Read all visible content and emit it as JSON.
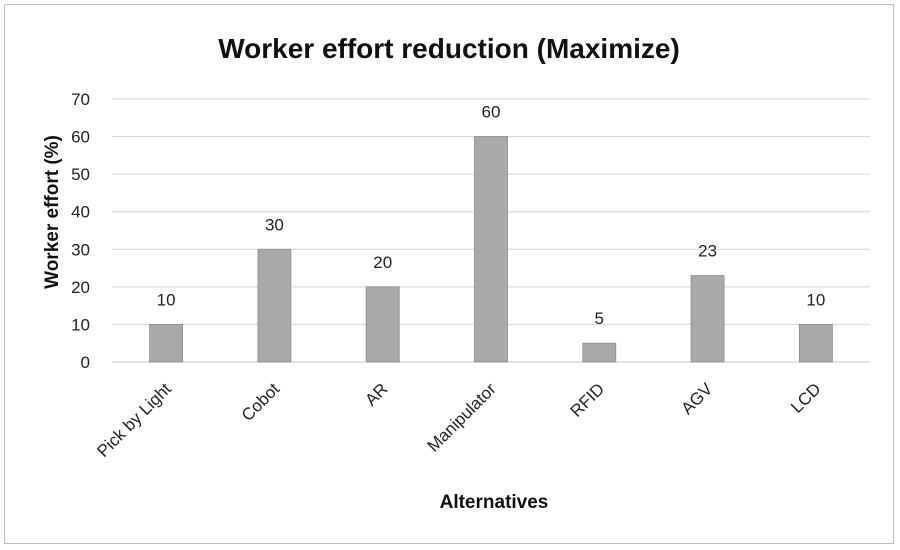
{
  "chart_data": {
    "type": "bar",
    "title": "Worker effort reduction (Maximize)",
    "xlabel": "Alternatives",
    "ylabel": "Worker effort  (%)",
    "categories": [
      "Pick by Light",
      "Cobot",
      "AR",
      "Manipulator",
      "RFID",
      "AGV",
      "LCD"
    ],
    "values": [
      10,
      30,
      20,
      60,
      5,
      23,
      10
    ],
    "ylim": [
      0,
      70
    ],
    "yticks": [
      0,
      10,
      20,
      30,
      40,
      50,
      60,
      70
    ],
    "grid": true,
    "legend": "none",
    "bar_color": "#a9a9a9"
  }
}
